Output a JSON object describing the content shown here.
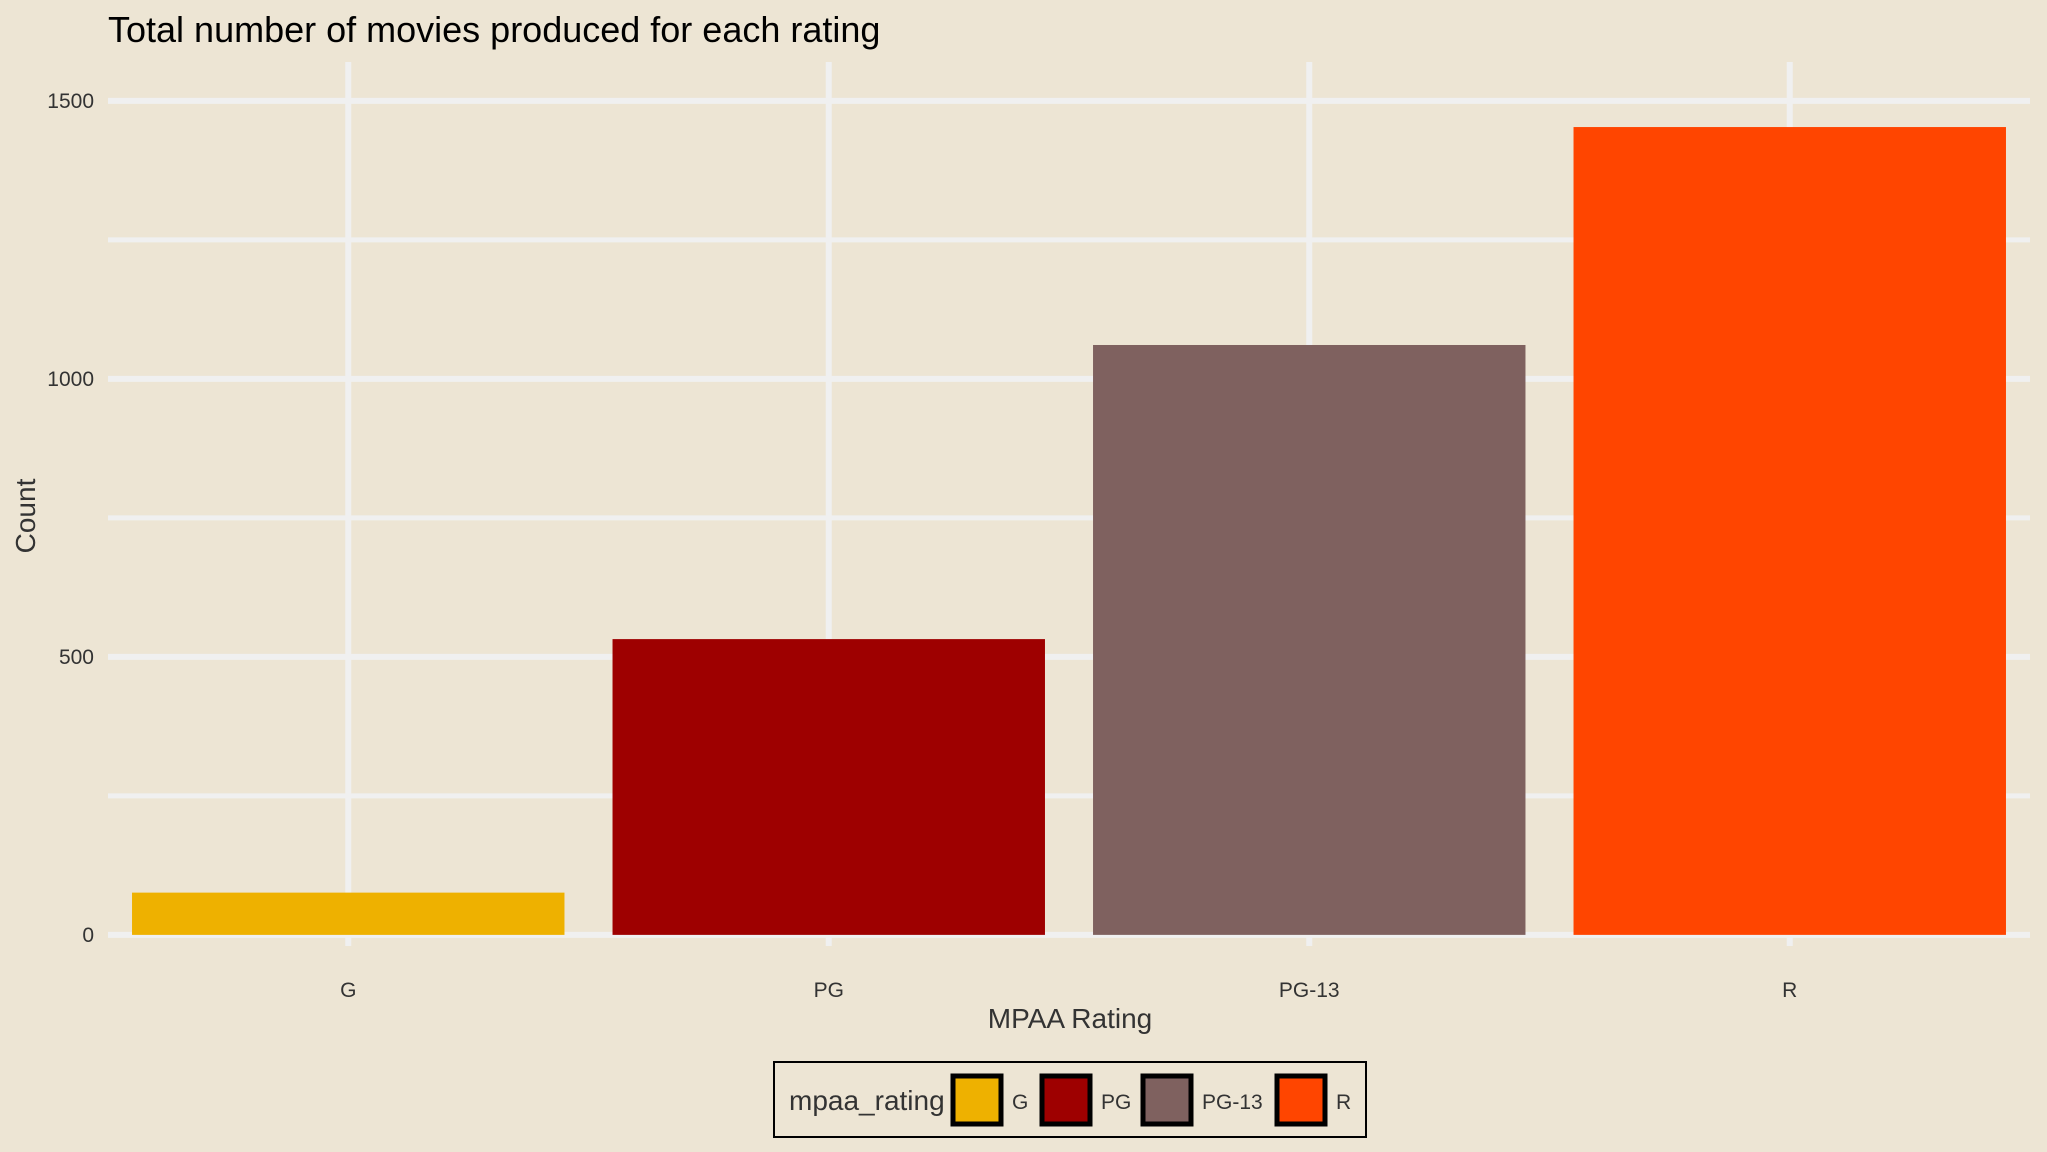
{
  "chart_data": {
    "type": "bar",
    "title": "Total number of movies produced for each rating",
    "xlabel": "MPAA Rating",
    "ylabel": "Count",
    "categories": [
      "G",
      "PG",
      "PG-13",
      "R"
    ],
    "values": [
      76,
      532,
      1061,
      1453
    ],
    "colors": [
      "#EEB100",
      "#9E0000",
      "#7F615F",
      "#FF4500"
    ],
    "ylim": [
      -20,
      1570
    ],
    "yticks": [
      0,
      500,
      1000,
      1500
    ],
    "ytick_labels": [
      "0",
      "500",
      "1000",
      "1500"
    ],
    "grid": true,
    "background": "#EDE5D4",
    "gridline_color": "#F0F0F0",
    "legend": {
      "title": "mpaa_rating",
      "position": "bottom",
      "entries": [
        "G",
        "PG",
        "PG-13",
        "R"
      ]
    }
  }
}
